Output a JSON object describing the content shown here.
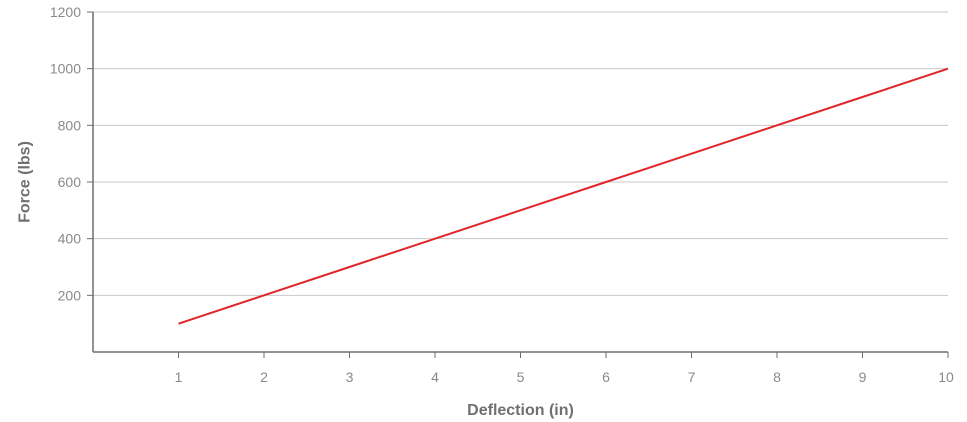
{
  "chart_data": {
    "type": "line",
    "xlabel": "Deflection (in)",
    "ylabel": "Force (lbs)",
    "xlim": [
      0,
      10
    ],
    "ylim": [
      0,
      1200
    ],
    "x_ticks": [
      1,
      2,
      3,
      4,
      5,
      6,
      7,
      8,
      9,
      10
    ],
    "y_ticks": [
      200,
      400,
      600,
      800,
      1000,
      1200
    ],
    "grid": "horizontal",
    "legend": "none",
    "series": [
      {
        "color": "#e0262b",
        "x": [
          1,
          2,
          3,
          4,
          5,
          6,
          7,
          8,
          9,
          10
        ],
        "values": [
          100,
          200,
          300,
          400,
          500,
          600,
          700,
          800,
          900,
          1000
        ]
      }
    ],
    "colors": {
      "grid": "#c8c8c8",
      "axis": "#6e6e6e",
      "tick_text": "#8a8a8a",
      "title_text": "#707070"
    }
  }
}
